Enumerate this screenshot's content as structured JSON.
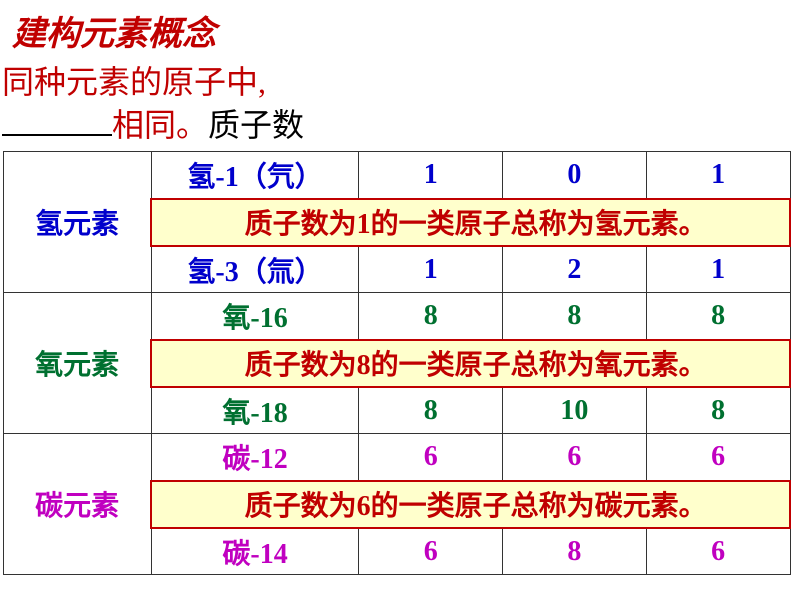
{
  "colors": {
    "red": "#c00000",
    "blue": "#0000cc",
    "green": "#007030",
    "magenta": "#c000c0",
    "black": "#000000",
    "highlight_bg": "#ffffcc"
  },
  "header": {
    "title": "建构元素概念",
    "subtitle_line1": "同种元素的原子中,",
    "subtitle_blank_after": "相同。",
    "subtitle_answer": "质子数"
  },
  "groups": [
    {
      "label": "氢元素",
      "label_color": "#0000cc",
      "rows": [
        {
          "name": "氢-1（氕）",
          "v1": "1",
          "v2": "0",
          "v3": "1",
          "color": "#0000cc"
        },
        {
          "highlight": "质子数为1的一类原子总称为氢元素。",
          "color": "#c00000"
        },
        {
          "name": "氢-3（氚）",
          "v1": "1",
          "v2": "2",
          "v3": "1",
          "color": "#0000cc"
        }
      ]
    },
    {
      "label": "氧元素",
      "label_color": "#007030",
      "rows": [
        {
          "name": "氧-16",
          "v1": "8",
          "v2": "8",
          "v3": "8",
          "color": "#007030"
        },
        {
          "highlight": "质子数为8的一类原子总称为氧元素。",
          "color": "#c00000"
        },
        {
          "name": "氧-18",
          "v1": "8",
          "v2": "10",
          "v3": "8",
          "color": "#007030"
        }
      ]
    },
    {
      "label": "碳元素",
      "label_color": "#c000c0",
      "rows": [
        {
          "name": "碳-12",
          "v1": "6",
          "v2": "6",
          "v3": "6",
          "color": "#c000c0"
        },
        {
          "highlight": "质子数为6的一类原子总称为碳元素。",
          "color": "#c00000"
        },
        {
          "name": "碳-14",
          "v1": "6",
          "v2": "8",
          "v3": "6",
          "color": "#c000c0"
        }
      ]
    }
  ]
}
